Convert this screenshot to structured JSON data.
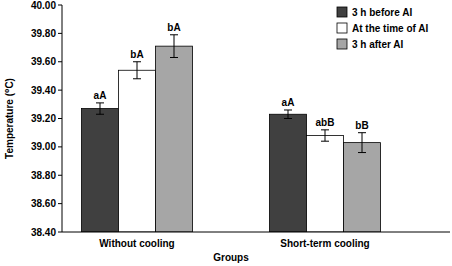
{
  "chart_data": {
    "type": "bar",
    "x_label": "Groups",
    "y_label": "Temperature (⁰C)",
    "categories": [
      "Without cooling",
      "Short-term cooling"
    ],
    "series": [
      {
        "name": "3 h before AI",
        "color": "#404040",
        "values": [
          39.27,
          39.23
        ],
        "errors": [
          0.04,
          0.03
        ],
        "annotations": [
          "aA",
          "aA"
        ]
      },
      {
        "name": "At the time of AI",
        "color": "#ffffff",
        "values": [
          39.54,
          39.08
        ],
        "errors": [
          0.06,
          0.04
        ],
        "annotations": [
          "bA",
          "abB"
        ]
      },
      {
        "name": "3 h after AI",
        "color": "#a6a6a6",
        "values": [
          39.71,
          39.03
        ],
        "errors": [
          0.08,
          0.07
        ],
        "annotations": [
          "bA",
          "bB"
        ]
      }
    ],
    "ylim": [
      38.4,
      40.0
    ],
    "yticks": [
      {
        "value": 38.4,
        "label": "38.40"
      },
      {
        "value": 38.6,
        "label": "38.60"
      },
      {
        "value": 38.8,
        "label": "38.80"
      },
      {
        "value": 39.0,
        "label": "39.00"
      },
      {
        "value": 39.2,
        "label": "39.20"
      },
      {
        "value": 39.4,
        "label": "39.40"
      },
      {
        "value": 39.6,
        "label": "39.60"
      },
      {
        "value": 39.8,
        "label": "39.80"
      },
      {
        "value": 40.0,
        "label": "40.00"
      }
    ],
    "grid": false,
    "legend": "upper right"
  }
}
